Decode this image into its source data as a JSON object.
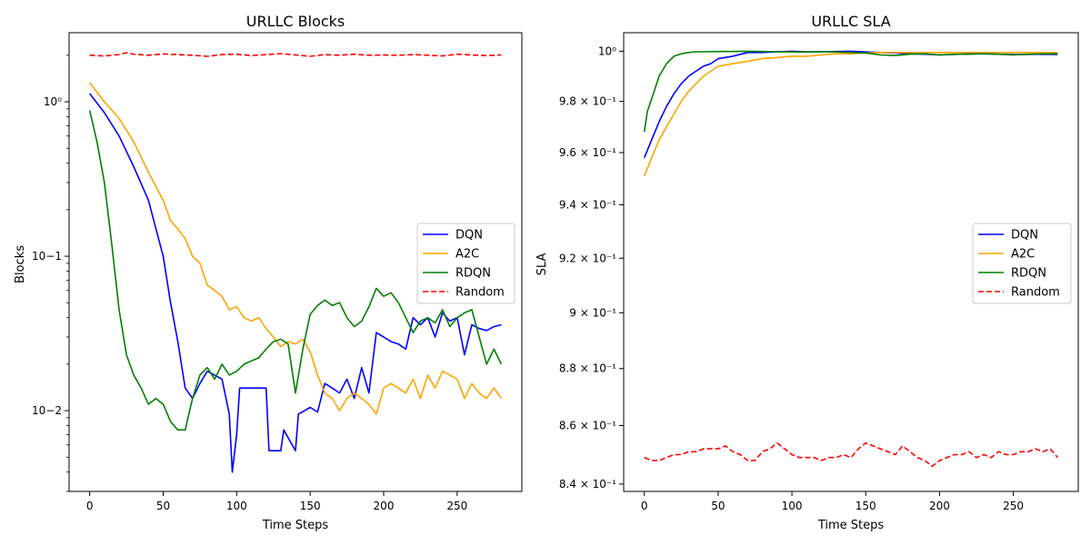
{
  "chart_data": [
    {
      "type": "line",
      "title": "URLLC Blocks",
      "xlabel": "Time Steps",
      "ylabel": "Blocks",
      "yscale": "log",
      "xlim": [
        -14,
        294
      ],
      "ylim": [
        0.003,
        2.8
      ],
      "xticks": [
        0,
        50,
        100,
        150,
        200,
        250
      ],
      "xtick_labels": [
        "0",
        "50",
        "100",
        "150",
        "200",
        "250"
      ],
      "yticks": [
        0.01,
        0.1,
        1
      ],
      "ytick_labels": [
        "10−2",
        "10−1",
        "10⁰"
      ],
      "grid": false,
      "legend_position": "center-right",
      "series": [
        {
          "name": "DQN",
          "color": "#0000ff",
          "dash": "solid",
          "x": [
            0,
            10,
            20,
            30,
            40,
            50,
            55,
            60,
            65,
            70,
            75,
            80,
            85,
            90,
            95,
            97,
            100,
            102,
            120,
            122,
            130,
            132,
            140,
            142,
            150,
            155,
            160,
            165,
            170,
            175,
            180,
            185,
            190,
            195,
            200,
            205,
            210,
            215,
            220,
            225,
            230,
            235,
            240,
            245,
            250,
            255,
            260,
            265,
            270,
            275,
            280
          ],
          "y": [
            1.13,
            0.85,
            0.6,
            0.38,
            0.23,
            0.1,
            0.05,
            0.028,
            0.014,
            0.012,
            0.015,
            0.018,
            0.017,
            0.016,
            0.0095,
            0.004,
            0.007,
            0.014,
            0.014,
            0.0055,
            0.0055,
            0.0075,
            0.0055,
            0.0095,
            0.0105,
            0.0098,
            0.015,
            0.014,
            0.013,
            0.016,
            0.012,
            0.019,
            0.013,
            0.032,
            0.03,
            0.028,
            0.027,
            0.025,
            0.04,
            0.036,
            0.04,
            0.03,
            0.043,
            0.038,
            0.04,
            0.023,
            0.036,
            0.034,
            0.033,
            0.035,
            0.036
          ]
        },
        {
          "name": "A2C",
          "color": "#ffa500",
          "dash": "solid",
          "x": [
            0,
            10,
            20,
            30,
            40,
            50,
            55,
            60,
            65,
            70,
            75,
            80,
            85,
            90,
            95,
            100,
            105,
            110,
            115,
            120,
            125,
            130,
            135,
            140,
            145,
            150,
            155,
            160,
            165,
            170,
            175,
            180,
            185,
            190,
            195,
            200,
            205,
            210,
            215,
            220,
            225,
            230,
            235,
            240,
            245,
            250,
            255,
            260,
            265,
            270,
            275,
            280
          ],
          "y": [
            1.33,
            1.0,
            0.78,
            0.55,
            0.35,
            0.23,
            0.17,
            0.15,
            0.13,
            0.1,
            0.09,
            0.065,
            0.06,
            0.055,
            0.045,
            0.047,
            0.04,
            0.038,
            0.04,
            0.034,
            0.03,
            0.026,
            0.028,
            0.027,
            0.029,
            0.024,
            0.017,
            0.013,
            0.012,
            0.01,
            0.012,
            0.013,
            0.012,
            0.011,
            0.0095,
            0.014,
            0.015,
            0.014,
            0.013,
            0.016,
            0.012,
            0.017,
            0.014,
            0.018,
            0.017,
            0.016,
            0.012,
            0.015,
            0.013,
            0.012,
            0.014,
            0.012
          ]
        },
        {
          "name": "RDQN",
          "color": "#008000",
          "dash": "solid",
          "x": [
            0,
            5,
            10,
            15,
            20,
            25,
            30,
            35,
            40,
            45,
            50,
            55,
            60,
            65,
            68,
            70,
            75,
            80,
            85,
            90,
            95,
            100,
            105,
            110,
            115,
            120,
            125,
            130,
            135,
            140,
            145,
            150,
            155,
            160,
            165,
            170,
            175,
            180,
            185,
            190,
            195,
            200,
            205,
            210,
            215,
            220,
            225,
            230,
            235,
            240,
            245,
            250,
            255,
            260,
            265,
            270,
            275,
            280
          ],
          "y": [
            0.88,
            0.55,
            0.3,
            0.12,
            0.045,
            0.023,
            0.017,
            0.014,
            0.011,
            0.012,
            0.011,
            0.0085,
            0.0075,
            0.0075,
            0.01,
            0.012,
            0.017,
            0.019,
            0.016,
            0.02,
            0.017,
            0.018,
            0.02,
            0.021,
            0.022,
            0.025,
            0.028,
            0.029,
            0.027,
            0.013,
            0.025,
            0.042,
            0.048,
            0.052,
            0.048,
            0.05,
            0.04,
            0.035,
            0.038,
            0.047,
            0.062,
            0.055,
            0.058,
            0.05,
            0.04,
            0.032,
            0.038,
            0.04,
            0.037,
            0.045,
            0.035,
            0.04,
            0.043,
            0.045,
            0.03,
            0.02,
            0.025,
            0.02
          ]
        },
        {
          "name": "Random",
          "color": "#ff0000",
          "dash": "dashed",
          "x": [
            0,
            10,
            20,
            25,
            30,
            40,
            50,
            60,
            70,
            80,
            90,
            100,
            110,
            120,
            130,
            140,
            150,
            160,
            170,
            180,
            190,
            200,
            210,
            220,
            230,
            240,
            250,
            260,
            270,
            280
          ],
          "y": [
            2.0,
            1.98,
            2.02,
            2.08,
            2.03,
            2.0,
            2.04,
            2.02,
            2.0,
            1.97,
            2.02,
            2.03,
            1.99,
            2.02,
            2.05,
            2.01,
            1.97,
            2.02,
            2.0,
            2.03,
            2.0,
            2.01,
            2.0,
            2.02,
            2.0,
            1.98,
            2.03,
            2.01,
            1.99,
            2.01
          ]
        }
      ]
    },
    {
      "type": "line",
      "title": "URLLC SLA",
      "xlabel": "Time Steps",
      "ylabel": "SLA",
      "yscale": "log",
      "xlim": [
        -14,
        294
      ],
      "ylim": [
        0.8375,
        1.0075
      ],
      "xticks": [
        0,
        50,
        100,
        150,
        200,
        250
      ],
      "xtick_labels": [
        "0",
        "50",
        "100",
        "150",
        "200",
        "250"
      ],
      "yticks": [
        0.84,
        0.86,
        0.88,
        0.9,
        0.92,
        0.94,
        0.96,
        0.98,
        1.0
      ],
      "ytick_labels": [
        "8.4 × 10⁻¹",
        "8.6 × 10⁻¹",
        "8.8 × 10⁻¹",
        "9 × 10⁻¹",
        "9.2 × 10⁻¹",
        "9.4 × 10⁻¹",
        "9.6 × 10⁻¹",
        "9.8 × 10⁻¹",
        "10⁰"
      ],
      "grid": false,
      "legend_position": "center-right",
      "series": [
        {
          "name": "DQN",
          "color": "#0000ff",
          "dash": "solid",
          "x": [
            0,
            5,
            10,
            15,
            20,
            25,
            30,
            35,
            40,
            45,
            50,
            60,
            70,
            80,
            90,
            100,
            110,
            120,
            130,
            140,
            150,
            160,
            170,
            180,
            190,
            200,
            210,
            220,
            230,
            240,
            250,
            260,
            270,
            280
          ],
          "y": [
            0.958,
            0.965,
            0.972,
            0.978,
            0.983,
            0.987,
            0.99,
            0.992,
            0.994,
            0.995,
            0.997,
            0.998,
            0.9995,
            0.9995,
            0.9998,
            1.0,
            0.9998,
            0.9998,
            0.9999,
            1.0,
            0.9997,
            0.9995,
            0.9993,
            0.999,
            0.9988,
            0.9985,
            0.9987,
            0.999,
            0.999,
            0.9988,
            0.9987,
            0.9987,
            0.9988,
            0.9987
          ]
        },
        {
          "name": "A2C",
          "color": "#ffa500",
          "dash": "solid",
          "x": [
            0,
            5,
            10,
            15,
            20,
            25,
            30,
            35,
            40,
            45,
            50,
            60,
            70,
            80,
            90,
            100,
            110,
            120,
            130,
            140,
            150,
            160,
            170,
            180,
            190,
            200,
            210,
            220,
            230,
            240,
            250,
            260,
            270,
            280
          ],
          "y": [
            0.951,
            0.958,
            0.965,
            0.97,
            0.975,
            0.98,
            0.984,
            0.987,
            0.99,
            0.992,
            0.994,
            0.995,
            0.996,
            0.997,
            0.9975,
            0.998,
            0.998,
            0.9985,
            0.999,
            0.999,
            0.9993,
            0.9995,
            0.9995,
            0.9995,
            0.9995,
            0.9995,
            0.9995,
            0.9995,
            0.9995,
            0.9995,
            0.9995,
            0.9995,
            0.9995,
            0.9995
          ]
        },
        {
          "name": "RDQN",
          "color": "#008000",
          "dash": "solid",
          "x": [
            0,
            2,
            5,
            10,
            15,
            20,
            25,
            30,
            35,
            40,
            50,
            60,
            70,
            80,
            90,
            100,
            110,
            120,
            130,
            140,
            150,
            160,
            170,
            180,
            190,
            200,
            210,
            220,
            230,
            240,
            250,
            260,
            270,
            280
          ],
          "y": [
            0.968,
            0.976,
            0.981,
            0.99,
            0.995,
            0.998,
            0.999,
            0.9995,
            0.9998,
            0.9998,
            0.9999,
            0.9999,
            1.0,
            0.9999,
            0.9998,
            0.9997,
            0.9997,
            0.9998,
            0.9997,
            0.9995,
            0.9993,
            0.9985,
            0.9983,
            0.9988,
            0.999,
            0.9985,
            0.9988,
            0.9988,
            0.999,
            0.9988,
            0.9985,
            0.9988,
            0.999,
            0.999
          ]
        },
        {
          "name": "Random",
          "color": "#ff0000",
          "dash": "dashed",
          "x": [
            0,
            5,
            10,
            15,
            20,
            25,
            30,
            35,
            40,
            45,
            50,
            55,
            60,
            65,
            70,
            75,
            80,
            85,
            90,
            95,
            100,
            105,
            110,
            115,
            120,
            125,
            130,
            135,
            140,
            145,
            150,
            155,
            160,
            165,
            170,
            175,
            180,
            185,
            190,
            195,
            200,
            205,
            210,
            215,
            220,
            225,
            230,
            235,
            240,
            245,
            250,
            255,
            260,
            265,
            270,
            275,
            280
          ],
          "y": [
            0.849,
            0.848,
            0.848,
            0.849,
            0.85,
            0.85,
            0.851,
            0.851,
            0.852,
            0.852,
            0.852,
            0.853,
            0.851,
            0.85,
            0.848,
            0.848,
            0.851,
            0.852,
            0.854,
            0.852,
            0.85,
            0.849,
            0.849,
            0.849,
            0.848,
            0.849,
            0.849,
            0.85,
            0.849,
            0.852,
            0.854,
            0.853,
            0.852,
            0.851,
            0.85,
            0.853,
            0.851,
            0.849,
            0.848,
            0.846,
            0.848,
            0.849,
            0.85,
            0.85,
            0.851,
            0.849,
            0.85,
            0.849,
            0.851,
            0.85,
            0.85,
            0.851,
            0.851,
            0.852,
            0.851,
            0.852,
            0.849
          ]
        }
      ]
    }
  ]
}
